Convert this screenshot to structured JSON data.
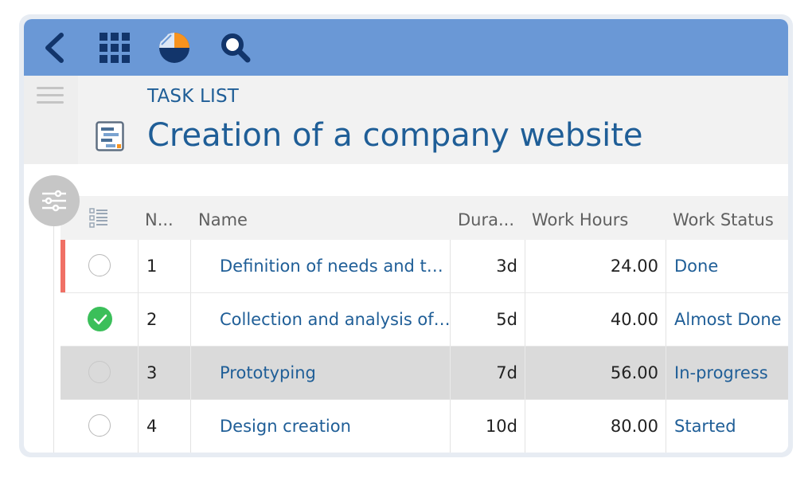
{
  "colors": {
    "topbar": "#6a98d6",
    "accent_text": "#1f5e97",
    "selected_row": "#dadada",
    "done_check": "#3bbf5a",
    "red_marker": "#f07065"
  },
  "toolbar": {
    "icons": [
      "back-icon",
      "apps-grid-icon",
      "app-logo-icon",
      "search-icon"
    ]
  },
  "header": {
    "kicker": "TASK LIST",
    "title": "Creation of a company website"
  },
  "table": {
    "columns": {
      "number": "N...",
      "name": "Name",
      "duration": "Dura...",
      "work_hours": "Work Hours",
      "work_status": "Work Status"
    },
    "rows": [
      {
        "n": "1",
        "name": "Definition of needs and t…",
        "duration": "3d",
        "hours": "24.00",
        "status": "Done",
        "completed": false
      },
      {
        "n": "2",
        "name": "Collection and analysis of…",
        "duration": "5d",
        "hours": "40.00",
        "status": "Almost Done",
        "completed": true
      },
      {
        "n": "3",
        "name": "Prototyping",
        "duration": "7d",
        "hours": "56.00",
        "status": "In-progress",
        "completed": false
      },
      {
        "n": "4",
        "name": "Design creation",
        "duration": "10d",
        "hours": "80.00",
        "status": "Started",
        "completed": false
      }
    ]
  }
}
